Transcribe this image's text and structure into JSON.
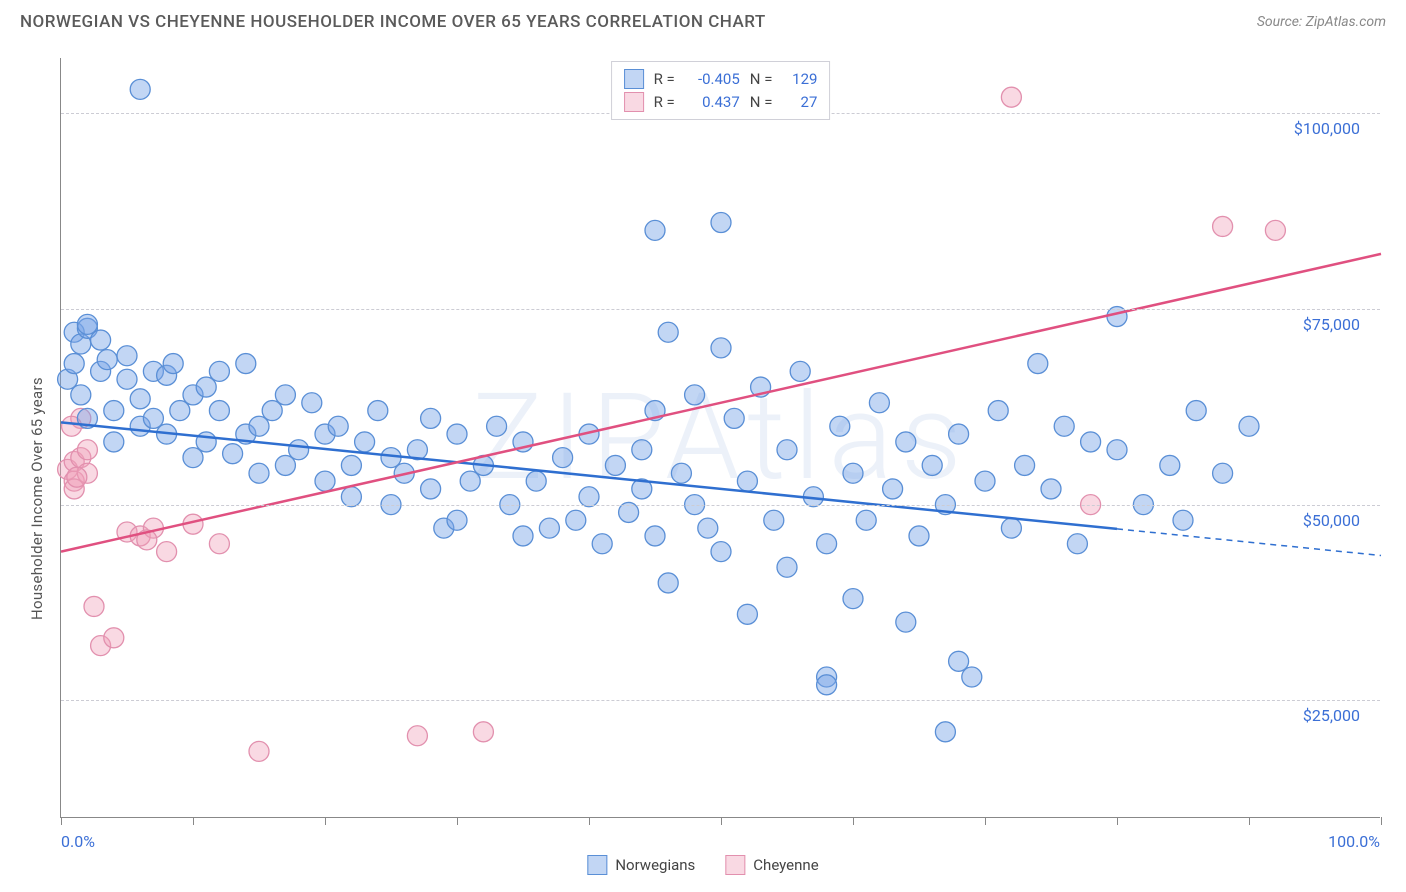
{
  "title": "NORWEGIAN VS CHEYENNE HOUSEHOLDER INCOME OVER 65 YEARS CORRELATION CHART",
  "source": "Source: ZipAtlas.com",
  "ylabel": "Householder Income Over 65 years",
  "watermark": "ZIPAtlas",
  "chart": {
    "type": "scatter",
    "xlim": [
      0,
      100
    ],
    "ylim": [
      10000,
      107000
    ],
    "yticks": [
      25000,
      50000,
      75000,
      100000
    ],
    "ytick_labels": [
      "$25,000",
      "$50,000",
      "$75,000",
      "$100,000"
    ],
    "xticks": [
      0,
      10,
      20,
      30,
      40,
      50,
      60,
      70,
      80,
      90,
      100
    ],
    "xtick_labels_shown": {
      "0": "0.0%",
      "100": "100.0%"
    },
    "background_color": "#ffffff",
    "grid_color": "#ccccd4",
    "axis_color": "#888888",
    "series": [
      {
        "name": "Norwegians",
        "R": "-0.405",
        "N": "129",
        "point_fill": "rgba(120,165,230,0.45)",
        "point_stroke": "#5a8fd6",
        "line_color": "#2f6fd0",
        "trend": {
          "x1": 0,
          "y1": 60500,
          "x2": 100,
          "y2": 43500,
          "solid_until_x": 80
        },
        "points": [
          [
            0.5,
            66000
          ],
          [
            1,
            72000
          ],
          [
            1,
            68000
          ],
          [
            1.5,
            70500
          ],
          [
            1.5,
            64000
          ],
          [
            2,
            72500
          ],
          [
            2,
            61000
          ],
          [
            2,
            73000
          ],
          [
            3,
            71000
          ],
          [
            3,
            67000
          ],
          [
            3.5,
            68500
          ],
          [
            4,
            58000
          ],
          [
            4,
            62000
          ],
          [
            5,
            69000
          ],
          [
            5,
            66000
          ],
          [
            6,
            60000
          ],
          [
            6,
            63500
          ],
          [
            7,
            67000
          ],
          [
            7,
            61000
          ],
          [
            8,
            66500
          ],
          [
            8,
            59000
          ],
          [
            8.5,
            68000
          ],
          [
            9,
            62000
          ],
          [
            10,
            64000
          ],
          [
            10,
            56000
          ],
          [
            11,
            65000
          ],
          [
            11,
            58000
          ],
          [
            12,
            67000
          ],
          [
            12,
            62000
          ],
          [
            13,
            56500
          ],
          [
            14,
            68000
          ],
          [
            14,
            59000
          ],
          [
            15,
            60000
          ],
          [
            15,
            54000
          ],
          [
            16,
            62000
          ],
          [
            17,
            64000
          ],
          [
            17,
            55000
          ],
          [
            18,
            57000
          ],
          [
            19,
            63000
          ],
          [
            20,
            53000
          ],
          [
            20,
            59000
          ],
          [
            21,
            60000
          ],
          [
            22,
            55000
          ],
          [
            22,
            51000
          ],
          [
            23,
            58000
          ],
          [
            24,
            62000
          ],
          [
            25,
            56000
          ],
          [
            25,
            50000
          ],
          [
            26,
            54000
          ],
          [
            27,
            57000
          ],
          [
            28,
            61000
          ],
          [
            28,
            52000
          ],
          [
            29,
            47000
          ],
          [
            30,
            48000
          ],
          [
            30,
            59000
          ],
          [
            31,
            53000
          ],
          [
            32,
            55000
          ],
          [
            33,
            60000
          ],
          [
            34,
            50000
          ],
          [
            35,
            58000
          ],
          [
            35,
            46000
          ],
          [
            36,
            53000
          ],
          [
            37,
            47000
          ],
          [
            38,
            56000
          ],
          [
            39,
            48000
          ],
          [
            40,
            51000
          ],
          [
            40,
            59000
          ],
          [
            41,
            45000
          ],
          [
            42,
            55000
          ],
          [
            43,
            49000
          ],
          [
            44,
            52000
          ],
          [
            44,
            57000
          ],
          [
            45,
            62000
          ],
          [
            45,
            46000
          ],
          [
            46,
            72000
          ],
          [
            46,
            40000
          ],
          [
            47,
            54000
          ],
          [
            48,
            50000
          ],
          [
            48,
            64000
          ],
          [
            49,
            47000
          ],
          [
            50,
            86000
          ],
          [
            50,
            44000
          ],
          [
            51,
            61000
          ],
          [
            52,
            53000
          ],
          [
            52,
            36000
          ],
          [
            53,
            65000
          ],
          [
            54,
            48000
          ],
          [
            55,
            57000
          ],
          [
            55,
            42000
          ],
          [
            56,
            67000
          ],
          [
            57,
            51000
          ],
          [
            58,
            45000
          ],
          [
            58,
            28000
          ],
          [
            59,
            60000
          ],
          [
            60,
            54000
          ],
          [
            60,
            38000
          ],
          [
            61,
            48000
          ],
          [
            62,
            63000
          ],
          [
            63,
            52000
          ],
          [
            64,
            35000
          ],
          [
            64,
            58000
          ],
          [
            65,
            46000
          ],
          [
            66,
            55000
          ],
          [
            67,
            50000
          ],
          [
            67,
            21000
          ],
          [
            68,
            59000
          ],
          [
            69,
            28000
          ],
          [
            70,
            53000
          ],
          [
            71,
            62000
          ],
          [
            72,
            47000
          ],
          [
            73,
            55000
          ],
          [
            74,
            68000
          ],
          [
            75,
            52000
          ],
          [
            76,
            60000
          ],
          [
            77,
            45000
          ],
          [
            78,
            58000
          ],
          [
            80,
            57000
          ],
          [
            80,
            74000
          ],
          [
            82,
            50000
          ],
          [
            84,
            55000
          ],
          [
            85,
            48000
          ],
          [
            86,
            62000
          ],
          [
            88,
            54000
          ],
          [
            90,
            60000
          ],
          [
            6,
            103000
          ],
          [
            58,
            27000
          ],
          [
            68,
            30000
          ],
          [
            45,
            85000
          ],
          [
            50,
            70000
          ]
        ]
      },
      {
        "name": "Cheyenne",
        "R": "0.437",
        "N": "27",
        "point_fill": "rgba(240,160,185,0.40)",
        "point_stroke": "#e290ae",
        "line_color": "#e05080",
        "trend": {
          "x1": 0,
          "y1": 44000,
          "x2": 100,
          "y2": 82000,
          "solid_until_x": 100
        },
        "points": [
          [
            0.5,
            54500
          ],
          [
            1,
            55500
          ],
          [
            1,
            53000
          ],
          [
            1.5,
            56000
          ],
          [
            1.5,
            61000
          ],
          [
            2,
            54000
          ],
          [
            2.5,
            37000
          ],
          [
            3,
            32000
          ],
          [
            4,
            33000
          ],
          [
            5,
            46500
          ],
          [
            6,
            46000
          ],
          [
            7,
            47000
          ],
          [
            8,
            44000
          ],
          [
            10,
            47500
          ],
          [
            12,
            45000
          ],
          [
            15,
            18500
          ],
          [
            27,
            20500
          ],
          [
            32,
            21000
          ],
          [
            72,
            102000
          ],
          [
            78,
            50000
          ],
          [
            88,
            85500
          ],
          [
            92,
            85000
          ],
          [
            1,
            52000
          ],
          [
            2,
            57000
          ],
          [
            0.8,
            60000
          ],
          [
            1.2,
            53500
          ],
          [
            6.5,
            45500
          ]
        ]
      }
    ]
  },
  "legend_top": {
    "r_label": "R =",
    "n_label": "N ="
  },
  "legend_bottom": {
    "items": [
      "Norwegians",
      "Cheyenne"
    ]
  }
}
